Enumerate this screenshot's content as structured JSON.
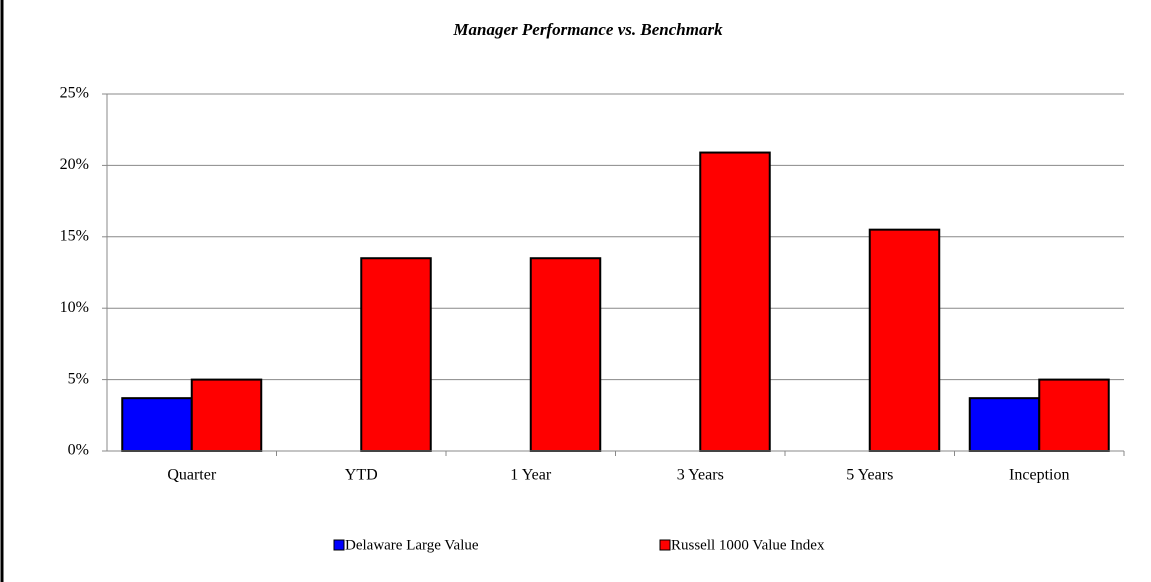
{
  "chart_data": {
    "type": "bar",
    "title": "Manager Performance vs. Benchmark",
    "categories": [
      "Quarter",
      "YTD",
      "1 Year",
      "3 Years",
      "5 Years",
      "Inception"
    ],
    "series": [
      {
        "name": "Delaware Large Value",
        "color": "#0000ff",
        "values": [
          3.7,
          null,
          null,
          null,
          null,
          3.7
        ]
      },
      {
        "name": "Russell 1000 Value Index",
        "color": "#ff0000",
        "values": [
          5.0,
          13.5,
          13.5,
          20.9,
          15.5,
          5.0
        ]
      }
    ],
    "ylim": [
      0,
      25
    ],
    "yticks": [
      {
        "value": 0,
        "label": "0%"
      },
      {
        "value": 5,
        "label": "5%"
      },
      {
        "value": 10,
        "label": "10%"
      },
      {
        "value": 15,
        "label": "15%"
      },
      {
        "value": 20,
        "label": "20%"
      },
      {
        "value": 25,
        "label": "25%"
      }
    ],
    "grid": true,
    "legend": "bottom"
  }
}
